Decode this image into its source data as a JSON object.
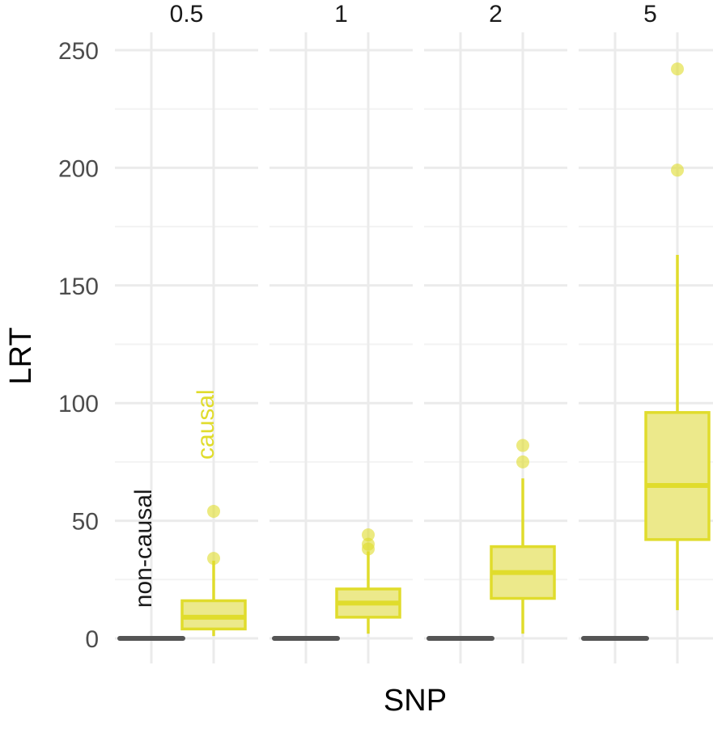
{
  "chart_data": {
    "type": "box",
    "facet_labels": [
      "0.5",
      "1",
      "2",
      "5"
    ],
    "xlabel": "SNP",
    "ylabel": "LRT",
    "ylim": [
      -10,
      255
    ],
    "y_ticks": [
      0,
      50,
      100,
      150,
      200,
      250
    ],
    "grid": true,
    "colors": {
      "non-causal": "#555555",
      "causal": "#e0dc2c",
      "causal_fill": "#ece98b"
    },
    "annotations": [
      {
        "text": "non-causal",
        "facet": "0.5",
        "group": "non-causal",
        "y": 13,
        "rotate": -90,
        "color": "#1a1a1a"
      },
      {
        "text": "causal",
        "facet": "0.5",
        "group": "causal",
        "y": 76,
        "rotate": -90,
        "color": "#e0dc2c"
      }
    ],
    "facets": [
      {
        "label": "0.5",
        "groups": [
          {
            "name": "non-causal",
            "whisker_low": 0,
            "q1": 0,
            "median": 0,
            "q3": 0,
            "whisker_high": 0,
            "outliers": []
          },
          {
            "name": "causal",
            "whisker_low": 1,
            "q1": 4,
            "median": 9,
            "q3": 16,
            "whisker_high": 33,
            "outliers": [
              34,
              54
            ]
          }
        ]
      },
      {
        "label": "1",
        "groups": [
          {
            "name": "non-causal",
            "whisker_low": 0,
            "q1": 0,
            "median": 0,
            "q3": 0,
            "whisker_high": 0,
            "outliers": []
          },
          {
            "name": "causal",
            "whisker_low": 2,
            "q1": 9,
            "median": 15,
            "q3": 21,
            "whisker_high": 37,
            "outliers": [
              38,
              40,
              44
            ]
          }
        ]
      },
      {
        "label": "2",
        "groups": [
          {
            "name": "non-causal",
            "whisker_low": 0,
            "q1": 0,
            "median": 0,
            "q3": 0,
            "whisker_high": 0,
            "outliers": []
          },
          {
            "name": "causal",
            "whisker_low": 2,
            "q1": 17,
            "median": 28,
            "q3": 39,
            "whisker_high": 68,
            "outliers": [
              75,
              82
            ]
          }
        ]
      },
      {
        "label": "5",
        "groups": [
          {
            "name": "non-causal",
            "whisker_low": 0,
            "q1": 0,
            "median": 0,
            "q3": 0,
            "whisker_high": 0,
            "outliers": []
          },
          {
            "name": "causal",
            "whisker_low": 12,
            "q1": 42,
            "median": 65,
            "q3": 96,
            "whisker_high": 163,
            "outliers": [
              199,
              242
            ]
          }
        ]
      }
    ]
  }
}
